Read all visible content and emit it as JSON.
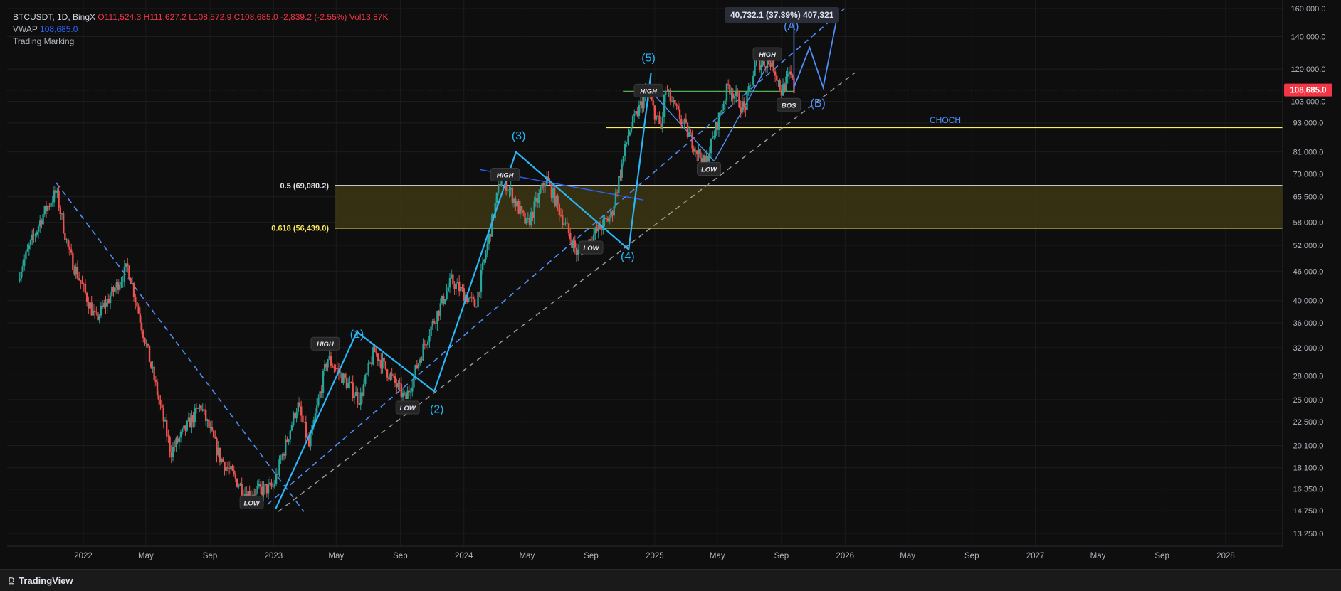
{
  "legend": {
    "symbol": "BTCUSDT, 1D, BingX",
    "ohlc": "O111,524.3 H111,627.2 L108,572.9 C108,685.0 -2,839.2 (-2.55%) Vol13.87K",
    "vwap_label": "VWAP",
    "vwap_value": "108,685.0",
    "indicator": "Trading Marking"
  },
  "measure_label": "40,732.1 (37.39%) 407,321",
  "footer": {
    "brand": "TradingView",
    "logo_icon": "tradingview-logo-icon"
  },
  "colors": {
    "background": "#0e0e0e",
    "up": "#26a69a",
    "down": "#ef5350",
    "wave": "#29b6f6",
    "projection": "#4f8ef7",
    "fib_zone": "#3d3614",
    "fib_line": "#ffee58",
    "last_price_bg": "#f23645"
  },
  "chart_data": {
    "type": "candlestick",
    "title": "BTCUSDT, 1D, BingX",
    "y_scale": "log",
    "ylim": [
      13250,
      160000
    ],
    "y_ticks": [
      "160,000.0",
      "140,000.0",
      "120,000.0",
      "108,685.0",
      "103,000.0",
      "93,000.0",
      "81,000.0",
      "73,000.0",
      "65,500.0",
      "58,000.0",
      "52,000.0",
      "46,000.0",
      "40,000.0",
      "36,000.0",
      "32,000.0",
      "28,000.0",
      "25,000.0",
      "22,500.0",
      "20,100.0",
      "18,100.0",
      "16,350.0",
      "14,750.0",
      "13,250.0"
    ],
    "x_ticks": [
      "2022",
      "May",
      "Sep",
      "2023",
      "May",
      "Sep",
      "2024",
      "May",
      "Sep",
      "2025",
      "May",
      "Sep",
      "2026",
      "May",
      "Sep",
      "2027",
      "May",
      "Sep",
      "2028"
    ],
    "last_price": "108,685.0",
    "price_path": [
      [
        "2021-09-01",
        46000
      ],
      [
        "2021-10-15",
        60000
      ],
      [
        "2021-11-10",
        67000
      ],
      [
        "2021-12-05",
        50000
      ],
      [
        "2022-01-25",
        36500
      ],
      [
        "2022-03-28",
        47000
      ],
      [
        "2022-05-12",
        29000
      ],
      [
        "2022-06-18",
        19500
      ],
      [
        "2022-08-14",
        24300
      ],
      [
        "2022-09-20",
        19000
      ],
      [
        "2022-11-09",
        16000
      ],
      [
        "2022-12-31",
        16500
      ],
      [
        "2023-02-16",
        24500
      ],
      [
        "2023-03-10",
        20000
      ],
      [
        "2023-04-14",
        30500
      ],
      [
        "2023-06-15",
        25000
      ],
      [
        "2023-07-13",
        31500
      ],
      [
        "2023-09-11",
        25000
      ],
      [
        "2023-10-24",
        34000
      ],
      [
        "2023-12-08",
        44000
      ],
      [
        "2024-01-23",
        39000
      ],
      [
        "2024-03-13",
        73000
      ],
      [
        "2024-05-01",
        57000
      ],
      [
        "2024-06-07",
        71500
      ],
      [
        "2024-08-05",
        50000
      ],
      [
        "2024-10-10",
        60000
      ],
      [
        "2024-11-12",
        89000
      ],
      [
        "2024-12-17",
        108000
      ],
      [
        "2025-01-13",
        90000
      ],
      [
        "2025-01-21",
        109000
      ],
      [
        "2025-04-07",
        76000
      ],
      [
        "2025-05-22",
        111000
      ],
      [
        "2025-06-22",
        99000
      ],
      [
        "2025-07-14",
        123000
      ],
      [
        "2025-08-14",
        124500
      ],
      [
        "2025-09-01",
        108000
      ],
      [
        "2025-09-18",
        117000
      ],
      [
        "2025-09-25",
        108685
      ]
    ],
    "fib_levels": [
      {
        "label": "0.5 (69,080.2)",
        "value": 69080.2
      },
      {
        "label": "0.618 (56,439.0)",
        "value": 56439.0
      }
    ],
    "horizontal_lines": [
      {
        "label": "CHOCH",
        "value": 91000
      }
    ],
    "wave_labels": [
      {
        "label": "(1)",
        "date": "2023-06-10",
        "value": 33500
      },
      {
        "label": "(2)",
        "date": "2023-11-10",
        "value": 23500
      },
      {
        "label": "(3)",
        "date": "2024-04-15",
        "value": 86000
      },
      {
        "label": "(4)",
        "date": "2024-11-10",
        "value": 48500
      },
      {
        "label": "(5)",
        "date": "2024-12-20",
        "value": 124500
      },
      {
        "label": "(A)",
        "date": "2025-09-20",
        "value": 144500
      },
      {
        "label": "(B)",
        "date": "2025-11-10",
        "value": 100500
      }
    ],
    "markers": [
      {
        "label": "LOW",
        "date": "2022-11-20",
        "value": 15300
      },
      {
        "label": "HIGH",
        "date": "2023-04-10",
        "value": 32500
      },
      {
        "label": "LOW",
        "date": "2023-09-15",
        "value": 24000
      },
      {
        "label": "HIGH",
        "date": "2024-03-20",
        "value": 72500
      },
      {
        "label": "LOW",
        "date": "2024-09-01",
        "value": 51300
      },
      {
        "label": "HIGH",
        "date": "2024-12-20",
        "value": 108000
      },
      {
        "label": "LOW",
        "date": "2025-04-15",
        "value": 74500
      },
      {
        "label": "HIGH",
        "date": "2025-08-05",
        "value": 128500
      },
      {
        "label": "BOS",
        "date": "2025-09-15",
        "value": 101000
      }
    ]
  }
}
